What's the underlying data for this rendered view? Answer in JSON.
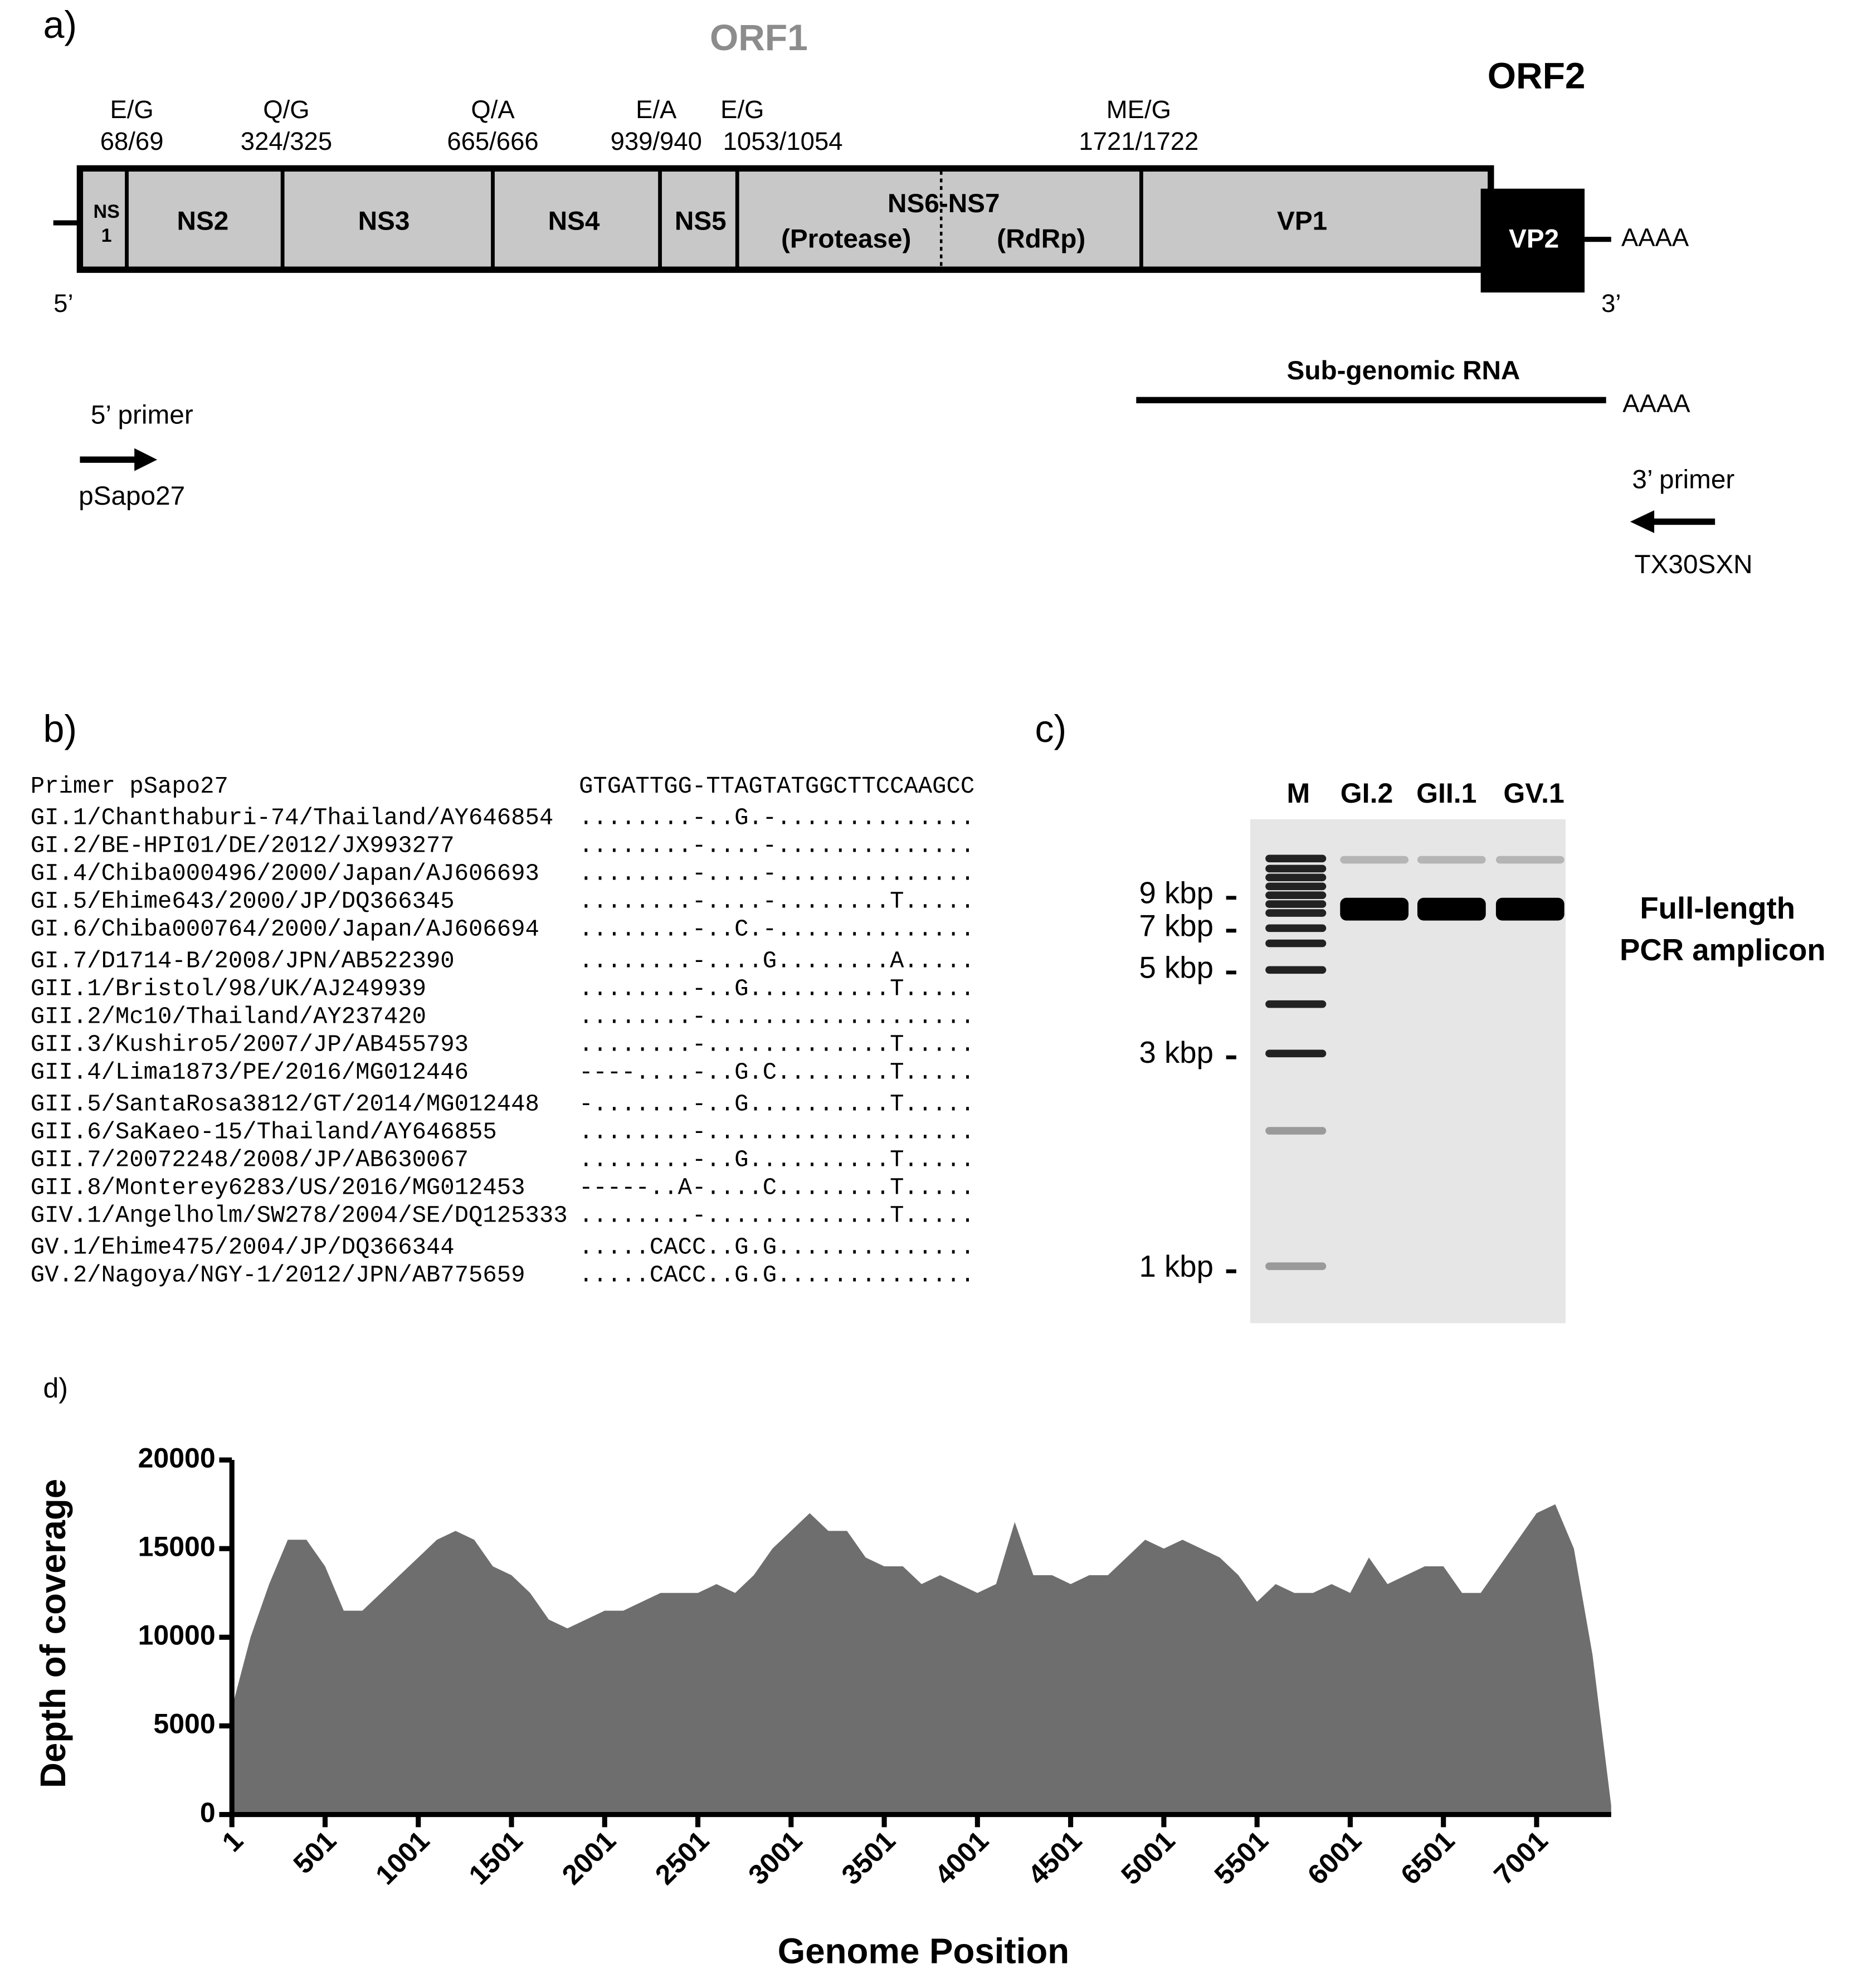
{
  "panel_a": {
    "label": "a)",
    "orf1": "ORF1",
    "orf2": "ORF2",
    "cleavage_sites": [
      {
        "site": "E/G",
        "position": "68/69"
      },
      {
        "site": "Q/G",
        "position": "324/325"
      },
      {
        "site": "Q/A",
        "position": "665/666"
      },
      {
        "site": "E/A",
        "position": "939/940"
      },
      {
        "site": "E/G",
        "position": "1053/1054"
      },
      {
        "site": "ME/G",
        "position": "1721/1722"
      }
    ],
    "regions": {
      "ns1": [
        "NS",
        "1"
      ],
      "ns2": "NS2",
      "ns3": "NS3",
      "ns4": "NS4",
      "ns5": "NS5",
      "ns6_ns7": "NS6-NS7",
      "protease": "(Protease)",
      "rdrp": "(RdRp)",
      "vp1": "VP1",
      "vp2": "VP2"
    },
    "five_prime": "5’",
    "three_prime": "3’",
    "poly_a": "AAAA",
    "subgenomic_rna": "Sub-genomic RNA",
    "subgenomic_poly_a": "AAAA",
    "primer_5": {
      "label": "5’ primer",
      "name": "pSapo27"
    },
    "primer_3": {
      "label": "3’ primer",
      "name": "TX30SXN"
    }
  },
  "panel_b": {
    "label": "b)",
    "primer": {
      "name": "Primer pSapo27",
      "sequence": "GTGATTGG-TTAGTATGGCTTCCAAGCC"
    },
    "rows": [
      {
        "name": "GI.1/Chanthaburi-74/Thailand/AY646854",
        "alignment": "........-..G.-.............."
      },
      {
        "name": "GI.2/BE-HPI01/DE/2012/JX993277",
        "alignment": "........-....-.............."
      },
      {
        "name": "GI.4/Chiba000496/2000/Japan/AJ606693",
        "alignment": "........-....-.............."
      },
      {
        "name": "GI.5/Ehime643/2000/JP/DQ366345",
        "alignment": "........-....-........T....."
      },
      {
        "name": "GI.6/Chiba000764/2000/Japan/AJ606694",
        "alignment": "........-..C.-.............."
      },
      {
        "name": "GI.7/D1714-B/2008/JPN/AB522390",
        "alignment": "........-....G........A....."
      },
      {
        "name": "GII.1/Bristol/98/UK/AJ249939",
        "alignment": "........-..G..........T....."
      },
      {
        "name": "GII.2/Mc10/Thailand/AY237420",
        "alignment": "........-..................."
      },
      {
        "name": "GII.3/Kushiro5/2007/JP/AB455793",
        "alignment": "........-.............T....."
      },
      {
        "name": "GII.4/Lima1873/PE/2016/MG012446",
        "alignment": "----....-..G.C........T....."
      },
      {
        "name": "GII.5/SantaRosa3812/GT/2014/MG012448",
        "alignment": "-.......-..G..........T....."
      },
      {
        "name": "GII.6/SaKaeo-15/Thailand/AY646855",
        "alignment": "........-..................."
      },
      {
        "name": "GII.7/20072248/2008/JP/AB630067",
        "alignment": "........-..G..........T....."
      },
      {
        "name": "GII.8/Monterey6283/US/2016/MG012453",
        "alignment": "-----..A-....C........T....."
      },
      {
        "name": "GIV.1/Angelholm/SW278/2004/SE/DQ125333",
        "alignment": "........-.............T....."
      },
      {
        "name": "GV.1/Ehime475/2004/JP/DQ366344",
        "alignment": ".....CACC..G.G.............."
      },
      {
        "name": "GV.2/Nagoya/NGY-1/2012/JPN/AB775659",
        "alignment": ".....CACC..G.G.............."
      }
    ]
  },
  "panel_c": {
    "label": "c)",
    "lanes": [
      "M",
      "GI.2",
      "GII.1",
      "GV.1"
    ],
    "markers": [
      "9 kbp",
      "7 kbp",
      "5 kbp",
      "3 kbp",
      "1 kbp"
    ],
    "annotation": [
      "Full-length",
      "PCR amplicon"
    ]
  },
  "chart_data": {
    "type": "area",
    "panel_label": "d)",
    "x_label": "Genome Position",
    "y_label": "Depth of coverage",
    "color": "#6e6e6e",
    "x": [
      1,
      101,
      201,
      301,
      401,
      501,
      601,
      701,
      801,
      901,
      1001,
      1101,
      1201,
      1301,
      1401,
      1501,
      1601,
      1701,
      1801,
      1901,
      2001,
      2101,
      2201,
      2301,
      2401,
      2501,
      2601,
      2701,
      2801,
      2901,
      3001,
      3101,
      3201,
      3301,
      3401,
      3501,
      3601,
      3701,
      3801,
      3901,
      4001,
      4101,
      4201,
      4301,
      4401,
      4501,
      4601,
      4701,
      4801,
      4901,
      5001,
      5101,
      5201,
      5301,
      5401,
      5501,
      5601,
      5701,
      5801,
      5901,
      6001,
      6101,
      6201,
      6301,
      6401,
      6501,
      6601,
      6701,
      6801,
      6901,
      7001,
      7101,
      7201,
      7301,
      7401
    ],
    "values": [
      6000,
      10000,
      13000,
      15500,
      15500,
      14000,
      11500,
      11500,
      12500,
      13500,
      14500,
      15500,
      16000,
      15500,
      14000,
      13500,
      12500,
      11000,
      10500,
      11000,
      11500,
      11500,
      12000,
      12500,
      12500,
      12500,
      13000,
      12500,
      13500,
      15000,
      16000,
      17000,
      16000,
      16000,
      14500,
      14000,
      14000,
      13000,
      13500,
      13000,
      12500,
      13000,
      16500,
      13500,
      13500,
      13000,
      13500,
      13500,
      14500,
      15500,
      15000,
      15500,
      15000,
      14500,
      13500,
      12000,
      13000,
      12500,
      12500,
      13000,
      12500,
      14500,
      13000,
      13500,
      14000,
      14000,
      12500,
      12500,
      14000,
      15500,
      17000,
      17500,
      15000,
      9000,
      500
    ],
    "xlim": [
      1,
      7401
    ],
    "ylim": [
      0,
      20000
    ],
    "xticks": [
      1,
      501,
      1001,
      1501,
      2001,
      2501,
      3001,
      3501,
      4001,
      4501,
      5001,
      5501,
      6001,
      6501,
      7001
    ],
    "yticks": [
      0,
      5000,
      10000,
      15000,
      20000
    ]
  }
}
